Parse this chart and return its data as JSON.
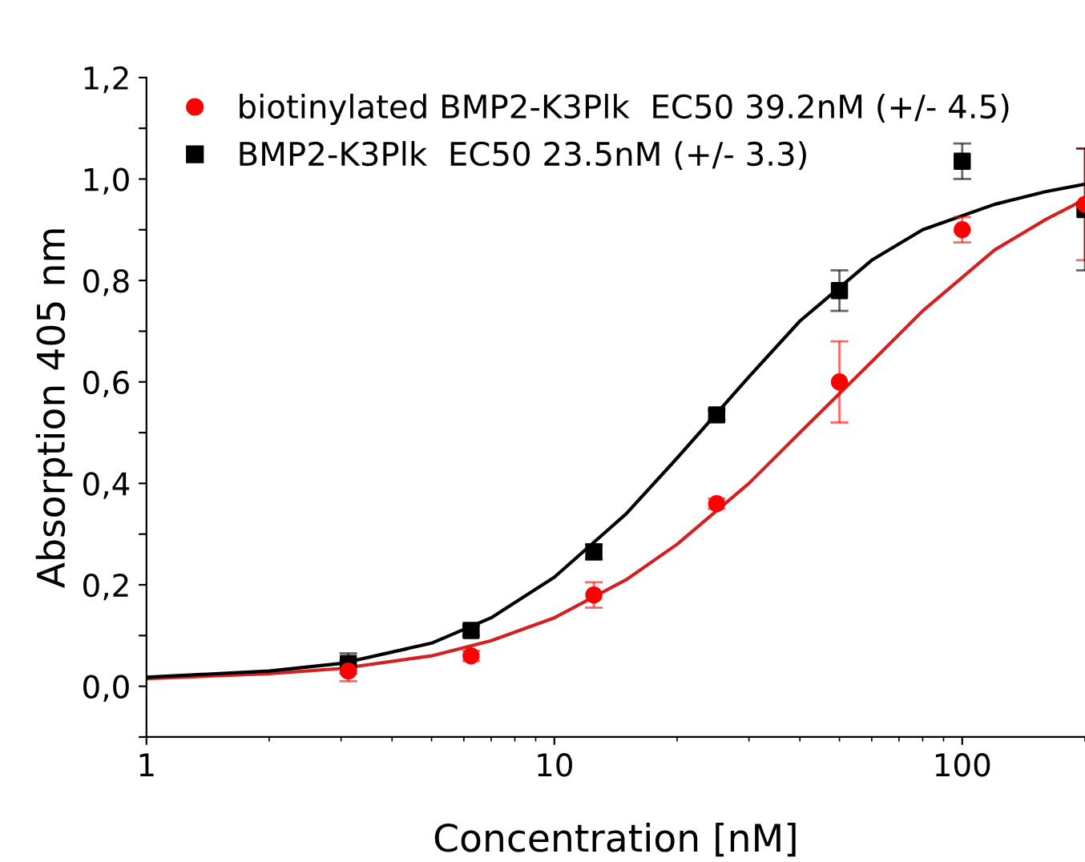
{
  "chart_data": {
    "type": "scatter",
    "xlabel": "Concentration [nM]",
    "ylabel": "Absorption 405 nm",
    "log": "x",
    "xlim": [
      1,
      200
    ],
    "xticks": [
      1,
      10,
      100
    ],
    "ylim": [
      -0.1,
      1.2
    ],
    "yticks": [
      {
        "value": -0.1,
        "label": null
      },
      {
        "value": 0,
        "label": "0,0"
      },
      {
        "value": 0.1,
        "label": null
      },
      {
        "value": 0.2,
        "label": "0,2"
      },
      {
        "value": 0.3,
        "label": null
      },
      {
        "value": 0.4,
        "label": "0,4"
      },
      {
        "value": 0.5,
        "label": null
      },
      {
        "value": 0.6,
        "label": "0,6"
      },
      {
        "value": 0.7,
        "label": null
      },
      {
        "value": 0.8,
        "label": "0,8"
      },
      {
        "value": 0.9,
        "label": null
      },
      {
        "value": 1.0,
        "label": "1,0"
      },
      {
        "value": 1.1,
        "label": null
      },
      {
        "value": 1.2,
        "label": "1,2"
      }
    ],
    "grid": false,
    "legend": "top left",
    "series": [
      {
        "name": "biotinylated BMP2-K3Plk  EC50 39.2nM (+/- 4.5)",
        "color": "#ff0000",
        "marker": "circle",
        "x": [
          3.125,
          6.25,
          12.5,
          25,
          50,
          100,
          200
        ],
        "values": [
          0.03,
          0.06,
          0.18,
          0.36,
          0.6,
          0.9,
          0.95
        ],
        "errors": [
          0.02,
          0.01,
          0.025,
          0.01,
          0.08,
          0.025,
          0.11
        ]
      },
      {
        "name": "BMP2-K3Plk  EC50 23.5nM (+/- 3.3)",
        "color": "#000000",
        "marker": "square",
        "x": [
          3.125,
          6.25,
          12.5,
          25,
          50,
          100,
          200
        ],
        "values": [
          0.045,
          0.11,
          0.265,
          0.535,
          0.78,
          1.035,
          0.94
        ],
        "errors": [
          0.02,
          0.01,
          0.015,
          0.01,
          0.04,
          0.035,
          0.12
        ]
      },
      {
        "type": "line",
        "color": "#d42020",
        "marker": "none",
        "x": [
          1,
          2,
          3,
          5,
          7,
          10,
          15,
          20,
          30,
          40,
          60,
          80,
          120,
          160,
          200
        ],
        "values": [
          0.015,
          0.025,
          0.035,
          0.06,
          0.09,
          0.135,
          0.21,
          0.28,
          0.4,
          0.5,
          0.64,
          0.74,
          0.86,
          0.92,
          0.96
        ]
      },
      {
        "type": "line",
        "color": "#000000",
        "marker": "none",
        "x": [
          1,
          2,
          3,
          5,
          7,
          10,
          15,
          20,
          30,
          40,
          60,
          80,
          120,
          160,
          200
        ],
        "values": [
          0.018,
          0.03,
          0.045,
          0.085,
          0.135,
          0.215,
          0.34,
          0.45,
          0.61,
          0.72,
          0.84,
          0.9,
          0.95,
          0.975,
          0.99
        ]
      }
    ]
  }
}
